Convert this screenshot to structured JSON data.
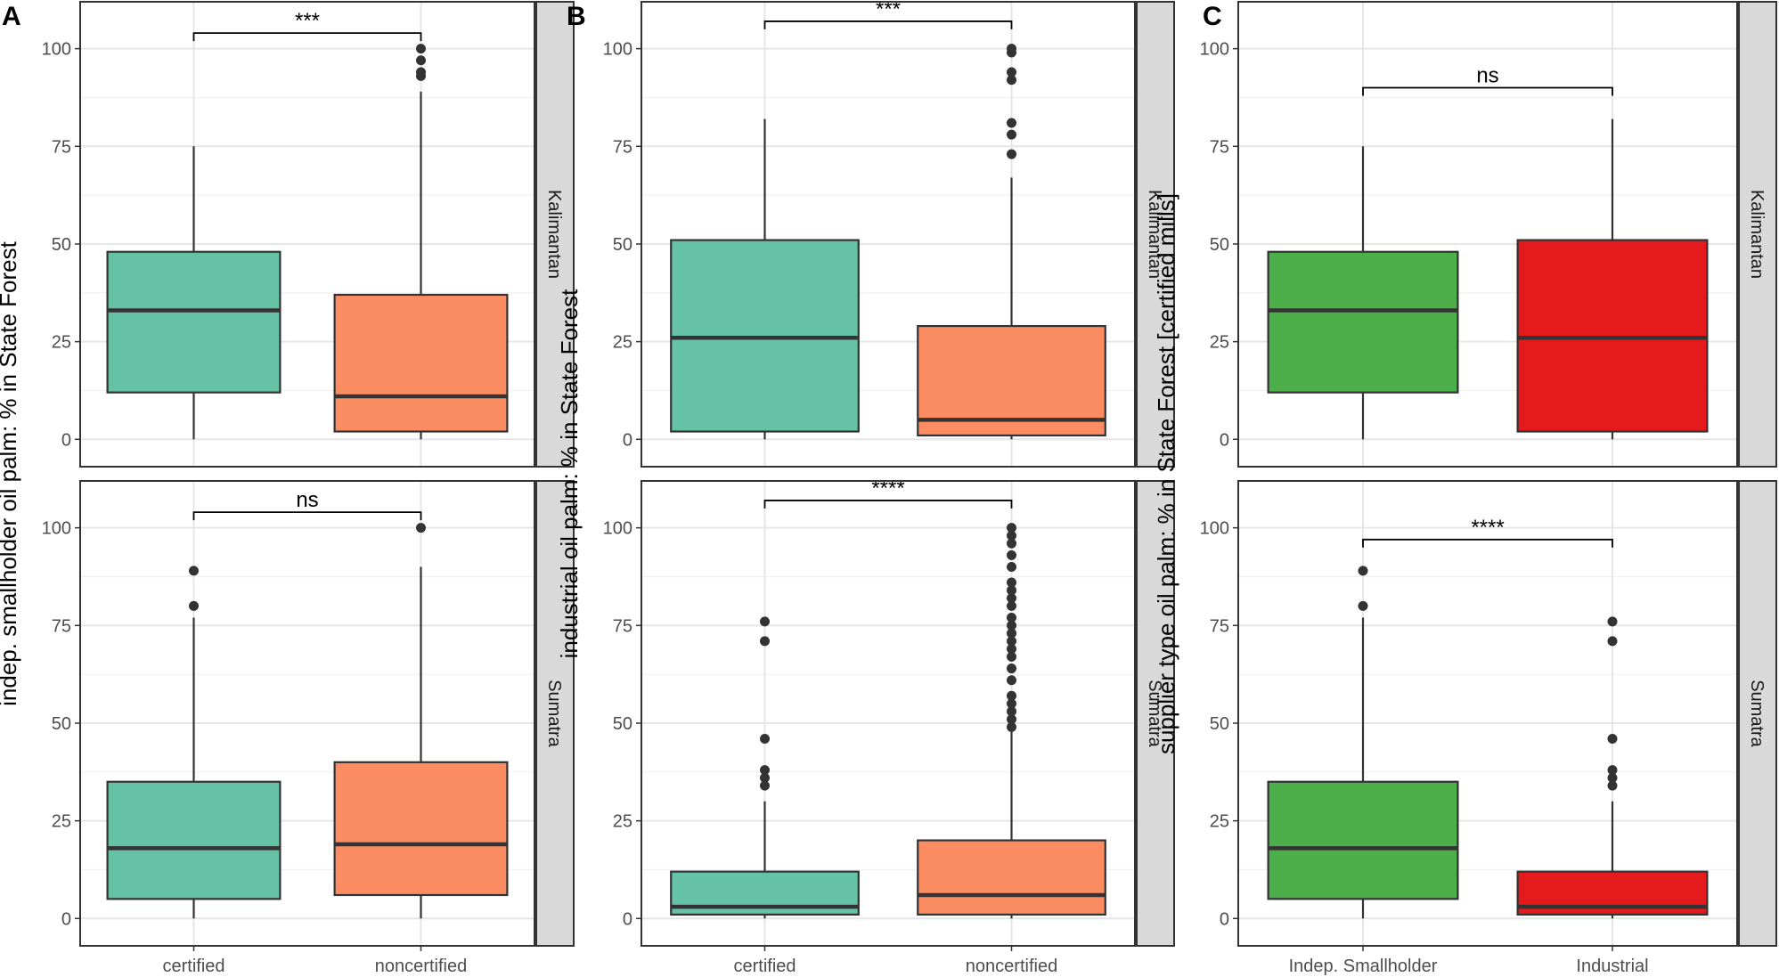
{
  "chart_data": [
    {
      "type": "box",
      "panel_letter": "A",
      "ylabel": "indep. smallholder oil palm: % in State Forest",
      "categories": [
        "certified",
        "noncertified"
      ],
      "colors": [
        "#66c2a5",
        "#fc8d62"
      ],
      "ylim": [
        -7,
        112
      ],
      "yticks": [
        "0",
        "25",
        "50",
        "75",
        "100"
      ],
      "facets": [
        {
          "strip": "Kalimantan",
          "significance": "***",
          "bracket_y": 104,
          "boxes": [
            {
              "q1": 12,
              "median": 33,
              "q3": 48,
              "wlow": 0,
              "whigh": 75,
              "outliers": []
            },
            {
              "q1": 2,
              "median": 11,
              "q3": 37,
              "wlow": 0,
              "whigh": 89,
              "outliers": [
                93,
                94,
                97,
                100
              ]
            }
          ]
        },
        {
          "strip": "Sumatra",
          "significance": "ns",
          "bracket_y": 104,
          "boxes": [
            {
              "q1": 5,
              "median": 18,
              "q3": 35,
              "wlow": 0,
              "whigh": 77,
              "outliers": [
                80,
                89
              ]
            },
            {
              "q1": 6,
              "median": 19,
              "q3": 40,
              "wlow": 0,
              "whigh": 90,
              "outliers": [
                100
              ]
            }
          ]
        }
      ]
    },
    {
      "type": "box",
      "panel_letter": "B",
      "ylabel": "industrial oil palm: % in State Forest",
      "categories": [
        "certified",
        "noncertified"
      ],
      "colors": [
        "#66c2a5",
        "#fc8d62"
      ],
      "ylim": [
        -7,
        112
      ],
      "yticks": [
        "0",
        "25",
        "50",
        "75",
        "100"
      ],
      "facets": [
        {
          "strip": "Kalimantan",
          "significance": "***",
          "bracket_y": 107,
          "boxes": [
            {
              "q1": 2,
              "median": 26,
              "q3": 51,
              "wlow": 0,
              "whigh": 82,
              "outliers": []
            },
            {
              "q1": 1,
              "median": 5,
              "q3": 29,
              "wlow": 0,
              "whigh": 67,
              "outliers": [
                73,
                78,
                81,
                92,
                94,
                99,
                100
              ]
            }
          ]
        },
        {
          "strip": "Sumatra",
          "significance": "****",
          "bracket_y": 107,
          "boxes": [
            {
              "q1": 1,
              "median": 3,
              "q3": 12,
              "wlow": 0,
              "whigh": 30,
              "outliers": [
                34,
                36,
                38,
                46,
                71,
                76
              ]
            },
            {
              "q1": 1,
              "median": 6,
              "q3": 20,
              "wlow": 0,
              "whigh": 48,
              "outliers": [
                49,
                51,
                53,
                55,
                57,
                61,
                64,
                67,
                69,
                71,
                73,
                75,
                77,
                80,
                82,
                84,
                86,
                90,
                93,
                96,
                98,
                100
              ]
            }
          ]
        }
      ]
    },
    {
      "type": "box",
      "panel_letter": "C",
      "ylabel": "supplier type oil palm: % in State Forest [certified mills]",
      "categories": [
        "Indep. Smallholder",
        "Industrial"
      ],
      "colors": [
        "#4daf4a",
        "#e41a1c"
      ],
      "ylim": [
        -7,
        112
      ],
      "yticks": [
        "0",
        "25",
        "50",
        "75",
        "100"
      ],
      "facets": [
        {
          "strip": "Kalimantan",
          "significance": "ns",
          "bracket_y": 90,
          "boxes": [
            {
              "q1": 12,
              "median": 33,
              "q3": 48,
              "wlow": 0,
              "whigh": 75,
              "outliers": []
            },
            {
              "q1": 2,
              "median": 26,
              "q3": 51,
              "wlow": 0,
              "whigh": 82,
              "outliers": []
            }
          ]
        },
        {
          "strip": "Sumatra",
          "significance": "****",
          "bracket_y": 97,
          "boxes": [
            {
              "q1": 5,
              "median": 18,
              "q3": 35,
              "wlow": 0,
              "whigh": 77,
              "outliers": [
                80,
                89
              ]
            },
            {
              "q1": 1,
              "median": 3,
              "q3": 12,
              "wlow": 0,
              "whigh": 30,
              "outliers": [
                34,
                36,
                38,
                46,
                71,
                76
              ]
            }
          ]
        }
      ]
    }
  ]
}
